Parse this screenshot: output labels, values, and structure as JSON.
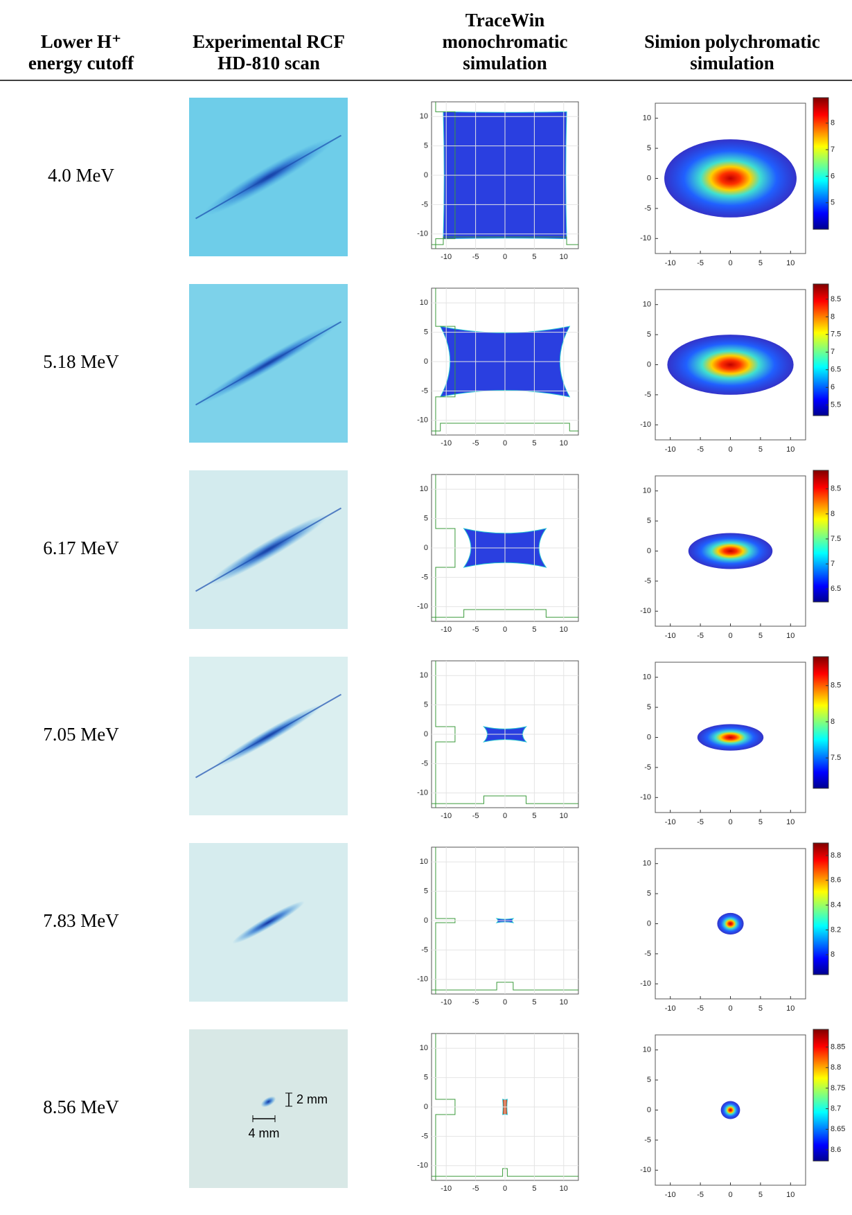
{
  "header": {
    "columns": [
      {
        "lines": [
          "Lower H⁺",
          "energy cutoff"
        ]
      },
      {
        "lines": [
          "Experimental RCF",
          "HD-810 scan"
        ]
      },
      {
        "lines": [
          "TraceWin",
          "monochromatic",
          "simulation"
        ]
      },
      {
        "lines": [
          "Simion polychromatic",
          "simulation"
        ]
      }
    ]
  },
  "axis_ticks": [
    -10,
    -5,
    0,
    5,
    10
  ],
  "axis_lim": [
    -12.5,
    12.5
  ],
  "rows": [
    {
      "label": "4.0 MeV",
      "colorbar_lim": [
        4.0,
        8.96
      ],
      "colorbar_ticks": [
        5,
        6,
        7,
        8
      ]
    },
    {
      "label": "5.18 MeV",
      "colorbar_lim": [
        5.2,
        8.93
      ],
      "colorbar_ticks": [
        5.5,
        6,
        6.5,
        7,
        7.5,
        8,
        8.5
      ]
    },
    {
      "label": "6.17 MeV",
      "colorbar_lim": [
        6.24,
        8.87
      ],
      "colorbar_ticks": [
        6.5,
        7,
        7.5,
        8,
        8.5
      ]
    },
    {
      "label": "7.05 MeV",
      "colorbar_lim": [
        7.08,
        8.9
      ],
      "colorbar_ticks": [
        7.5,
        8,
        8.5
      ]
    },
    {
      "label": "7.83 MeV",
      "colorbar_lim": [
        7.84,
        8.9
      ],
      "colorbar_ticks": [
        8,
        8.2,
        8.4,
        8.6,
        8.8
      ]
    },
    {
      "label": "8.56 MeV",
      "colorbar_lim": [
        8.573,
        8.893
      ],
      "colorbar_ticks": [
        8.6,
        8.65,
        8.7,
        8.75,
        8.8,
        8.85
      ]
    }
  ],
  "scale_bar": {
    "vertical": "2 mm",
    "horizontal": "4 mm"
  }
}
